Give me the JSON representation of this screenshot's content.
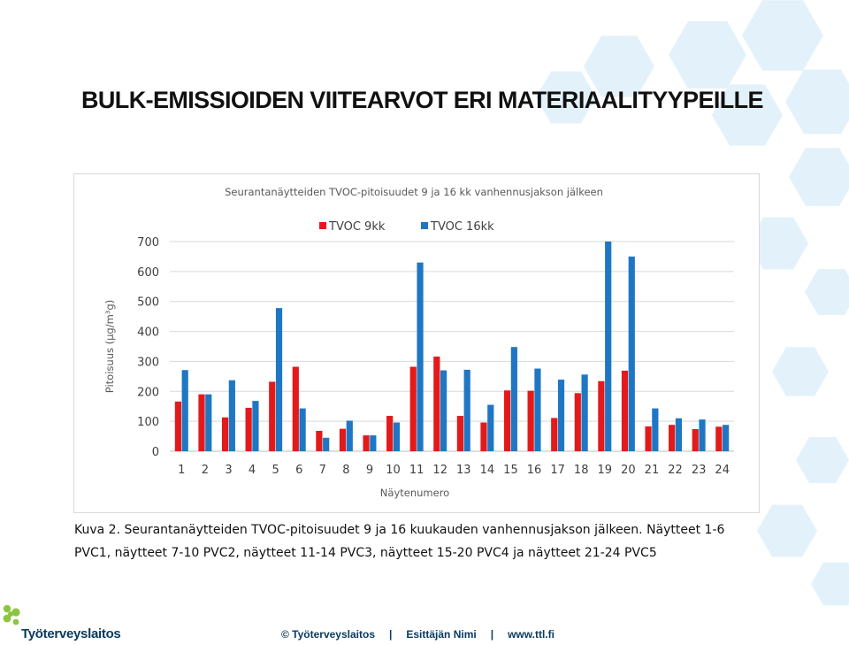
{
  "slide": {
    "title": "BULK-EMISSIOIDEN VIITEARVOT ERI MATERIAALITYYPEILLE",
    "caption_line1": "Kuva 2. Seurantanäytteiden TVOC-pitoisuudet 9 ja 16 kuukauden vanhennusjakson jälkeen. Näytteet 1-6",
    "caption_line2": "PVC1, näytteet 7-10 PVC2, näytteet 11-14 PVC3, näytteet 15-20 PVC4 ja näytteet 21-24 PVC5"
  },
  "footer": {
    "logo_text": "Työterveyslaitos",
    "copyright": "© Työterveyslaitos",
    "presenter": "Esittäjän Nimi",
    "url": "www.ttl.fi",
    "separator": "|"
  },
  "colors": {
    "series_9kk": "#e31a1c",
    "series_16kk": "#1f77c4",
    "logo_green": "#8cc63f",
    "footer_text": "#0b3b60",
    "background_hex": "#e3f2fa"
  },
  "chart_data": {
    "type": "bar",
    "title": "Seurantanäytteiden TVOC-pitoisuudet 9 ja 16 kk vanhennusjakson jälkeen",
    "xlabel": "Näytenumero",
    "ylabel": "Pitoisuus (µg/m³g)",
    "ylim": [
      0,
      700
    ],
    "yticks": [
      0,
      100,
      200,
      300,
      400,
      500,
      600,
      700
    ],
    "grid": true,
    "legend_position": "top",
    "categories": [
      "1",
      "2",
      "3",
      "4",
      "5",
      "6",
      "7",
      "8",
      "9",
      "10",
      "11",
      "12",
      "13",
      "14",
      "15",
      "16",
      "17",
      "18",
      "19",
      "20",
      "21",
      "22",
      "23",
      "24"
    ],
    "series": [
      {
        "name": "TVOC 9kk",
        "values": [
          166,
          190,
          113,
          145,
          232,
          282,
          68,
          75,
          53,
          118,
          282,
          316,
          118,
          96,
          203,
          202,
          111,
          194,
          234,
          269,
          83,
          88,
          74,
          82
        ]
      },
      {
        "name": "TVOC 16kk",
        "values": [
          271,
          190,
          237,
          168,
          478,
          143,
          45,
          102,
          53,
          96,
          630,
          270,
          272,
          155,
          348,
          276,
          239,
          256,
          700,
          650,
          143,
          110,
          106,
          88
        ]
      }
    ]
  }
}
